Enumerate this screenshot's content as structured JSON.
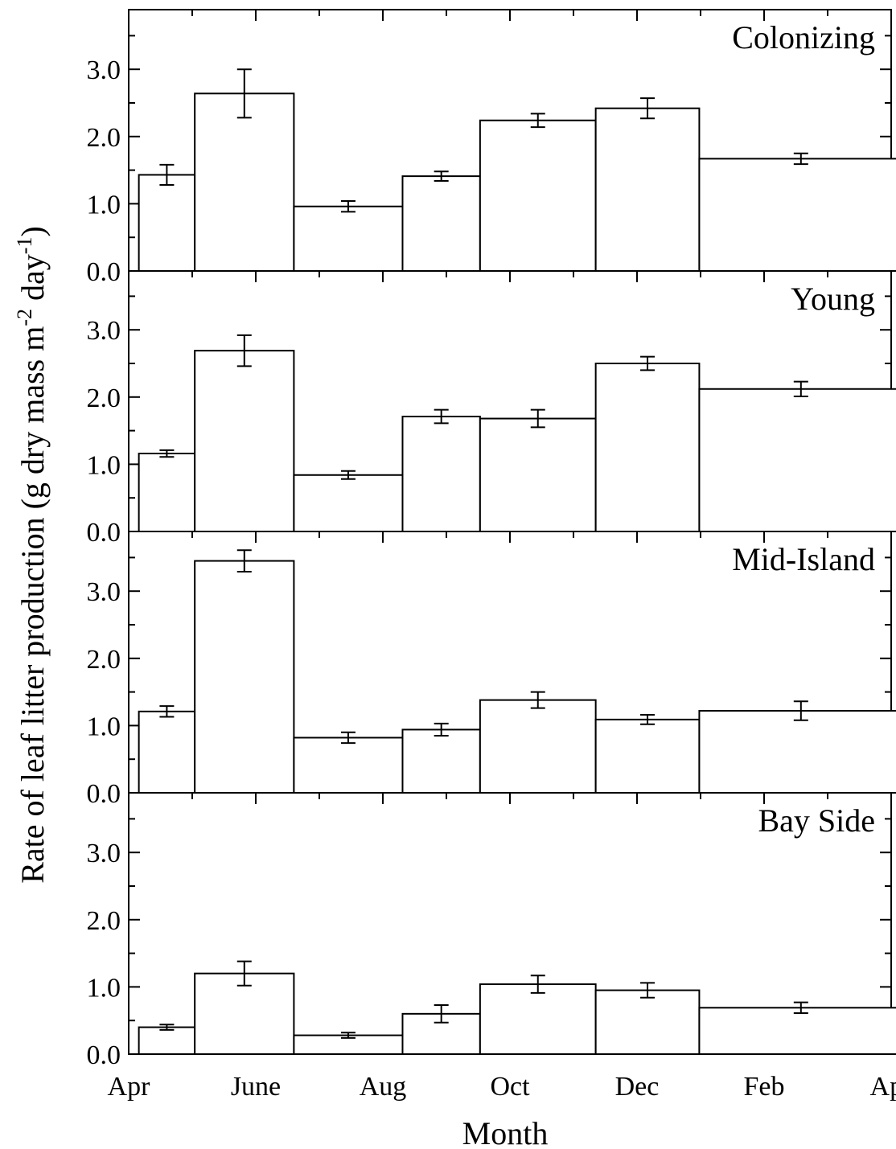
{
  "chart_data": {
    "type": "bar",
    "xlabel": "Month",
    "ylabel": "Rate of leaf litter production (g dry mass m",
    "ylabel_sup1": "-2",
    "ylabel_mid": " day",
    "ylabel_sup2": "-1",
    "ylabel_end": ")",
    "x_ticks": [
      "Apr",
      "June",
      "Aug",
      "Oct",
      "Dec",
      "Feb",
      "Apr"
    ],
    "x_range_months": [
      0,
      12
    ],
    "y_ticks": [
      "0.0",
      "1.0",
      "2.0",
      "3.0"
    ],
    "ylim": [
      0,
      3.9
    ],
    "intervals": [
      [
        0.16,
        1.04
      ],
      [
        1.04,
        2.6
      ],
      [
        2.6,
        4.31
      ],
      [
        4.31,
        5.53
      ],
      [
        5.53,
        7.35
      ],
      [
        7.35,
        8.98
      ],
      [
        8.98,
        12.18
      ]
    ],
    "panels": [
      {
        "label": "Colonizing",
        "values": [
          1.43,
          2.64,
          0.96,
          1.41,
          2.24,
          2.42,
          1.67
        ],
        "errors": [
          0.15,
          0.36,
          0.08,
          0.07,
          0.1,
          0.15,
          0.08
        ]
      },
      {
        "label": "Young",
        "values": [
          1.16,
          2.69,
          0.84,
          1.71,
          1.68,
          2.5,
          2.12
        ],
        "errors": [
          0.05,
          0.23,
          0.06,
          0.1,
          0.13,
          0.1,
          0.11
        ]
      },
      {
        "label": "Mid-Island",
        "values": [
          1.21,
          3.45,
          0.82,
          0.94,
          1.38,
          1.09,
          1.22
        ],
        "errors": [
          0.08,
          0.16,
          0.08,
          0.09,
          0.12,
          0.07,
          0.14
        ]
      },
      {
        "label": "Bay Side",
        "values": [
          0.4,
          1.2,
          0.28,
          0.6,
          1.04,
          0.95,
          0.69
        ],
        "errors": [
          0.04,
          0.18,
          0.04,
          0.13,
          0.13,
          0.11,
          0.08
        ]
      }
    ],
    "grid": false,
    "legend": "none"
  }
}
